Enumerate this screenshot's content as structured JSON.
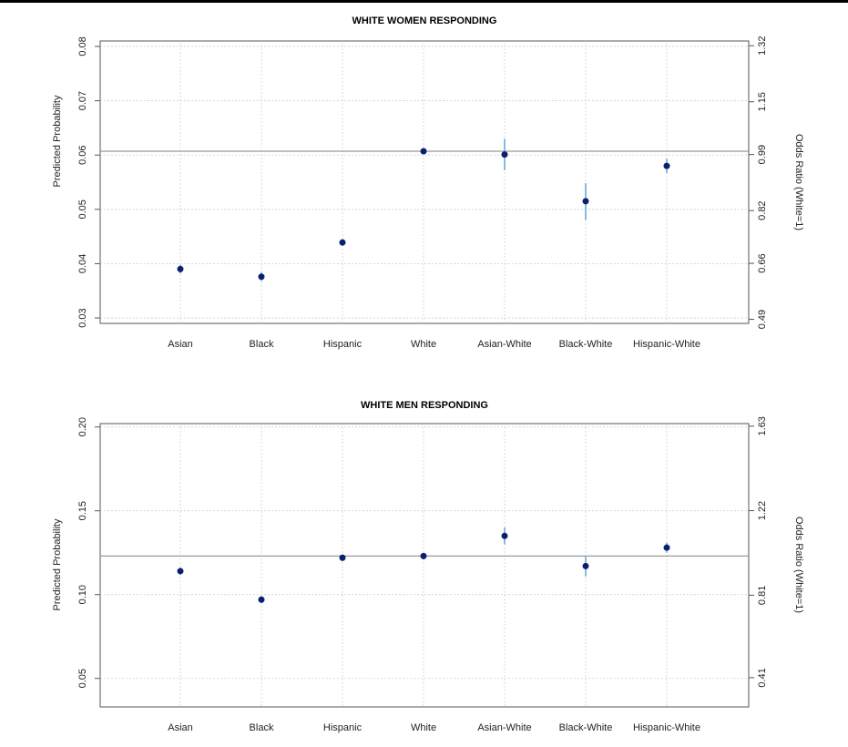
{
  "colors": {
    "point": "#0a1f6e",
    "errorbar": "#6aa8d8",
    "refline": "#999999",
    "grid": "#d0d0d0"
  },
  "chart_data": [
    {
      "type": "scatter",
      "title": "WHITE WOMEN RESPONDING",
      "ylabel": "Predicted Probability",
      "y2label": "Odds Ratio (White=1)",
      "categories": [
        "Asian",
        "Black",
        "Hispanic",
        "White",
        "Asian-White",
        "Black-White",
        "Hispanic-White"
      ],
      "values": [
        0.039,
        0.0376,
        0.0439,
        0.0607,
        0.0601,
        0.0515,
        0.058
      ],
      "lower": [
        0.0382,
        0.0368,
        0.0433,
        0.0603,
        0.0572,
        0.0481,
        0.0567
      ],
      "upper": [
        0.0398,
        0.0384,
        0.0445,
        0.0611,
        0.063,
        0.0548,
        0.0593
      ],
      "reference": 0.0607,
      "ylim": [
        0.029,
        0.081
      ],
      "yticks": [
        0.03,
        0.04,
        0.05,
        0.06,
        0.07,
        0.08
      ],
      "ytick_labels": [
        "0.03",
        "0.04",
        "0.05",
        "0.06",
        "0.07",
        "0.08"
      ],
      "y2ticks": [
        0.49,
        0.66,
        0.82,
        0.99,
        1.15,
        1.32
      ],
      "y2tick_labels": [
        "0.49",
        "0.66",
        "0.82",
        "0.99",
        "1.15",
        "1.32"
      ],
      "grid": true
    },
    {
      "type": "scatter",
      "title": "WHITE MEN RESPONDING",
      "ylabel": "Predicted Probability",
      "y2label": "Odds Ratio (White=1)",
      "categories": [
        "Asian",
        "Black",
        "Hispanic",
        "White",
        "Asian-White",
        "Black-White",
        "Hispanic-White"
      ],
      "values": [
        0.114,
        0.097,
        0.122,
        0.123,
        0.135,
        0.117,
        0.128
      ],
      "lower": [
        0.112,
        0.095,
        0.12,
        0.122,
        0.13,
        0.111,
        0.125
      ],
      "upper": [
        0.116,
        0.099,
        0.124,
        0.124,
        0.14,
        0.123,
        0.131
      ],
      "reference": 0.123,
      "ylim": [
        0.033,
        0.202
      ],
      "yticks": [
        0.05,
        0.1,
        0.15,
        0.2
      ],
      "ytick_labels": [
        "0.05",
        "0.10",
        "0.15",
        "0.20"
      ],
      "y2ticks": [
        0.41,
        0.81,
        1.22,
        1.63
      ],
      "y2tick_labels": [
        "0.41",
        "0.81",
        "1.22",
        "1.63"
      ],
      "grid": true
    }
  ]
}
